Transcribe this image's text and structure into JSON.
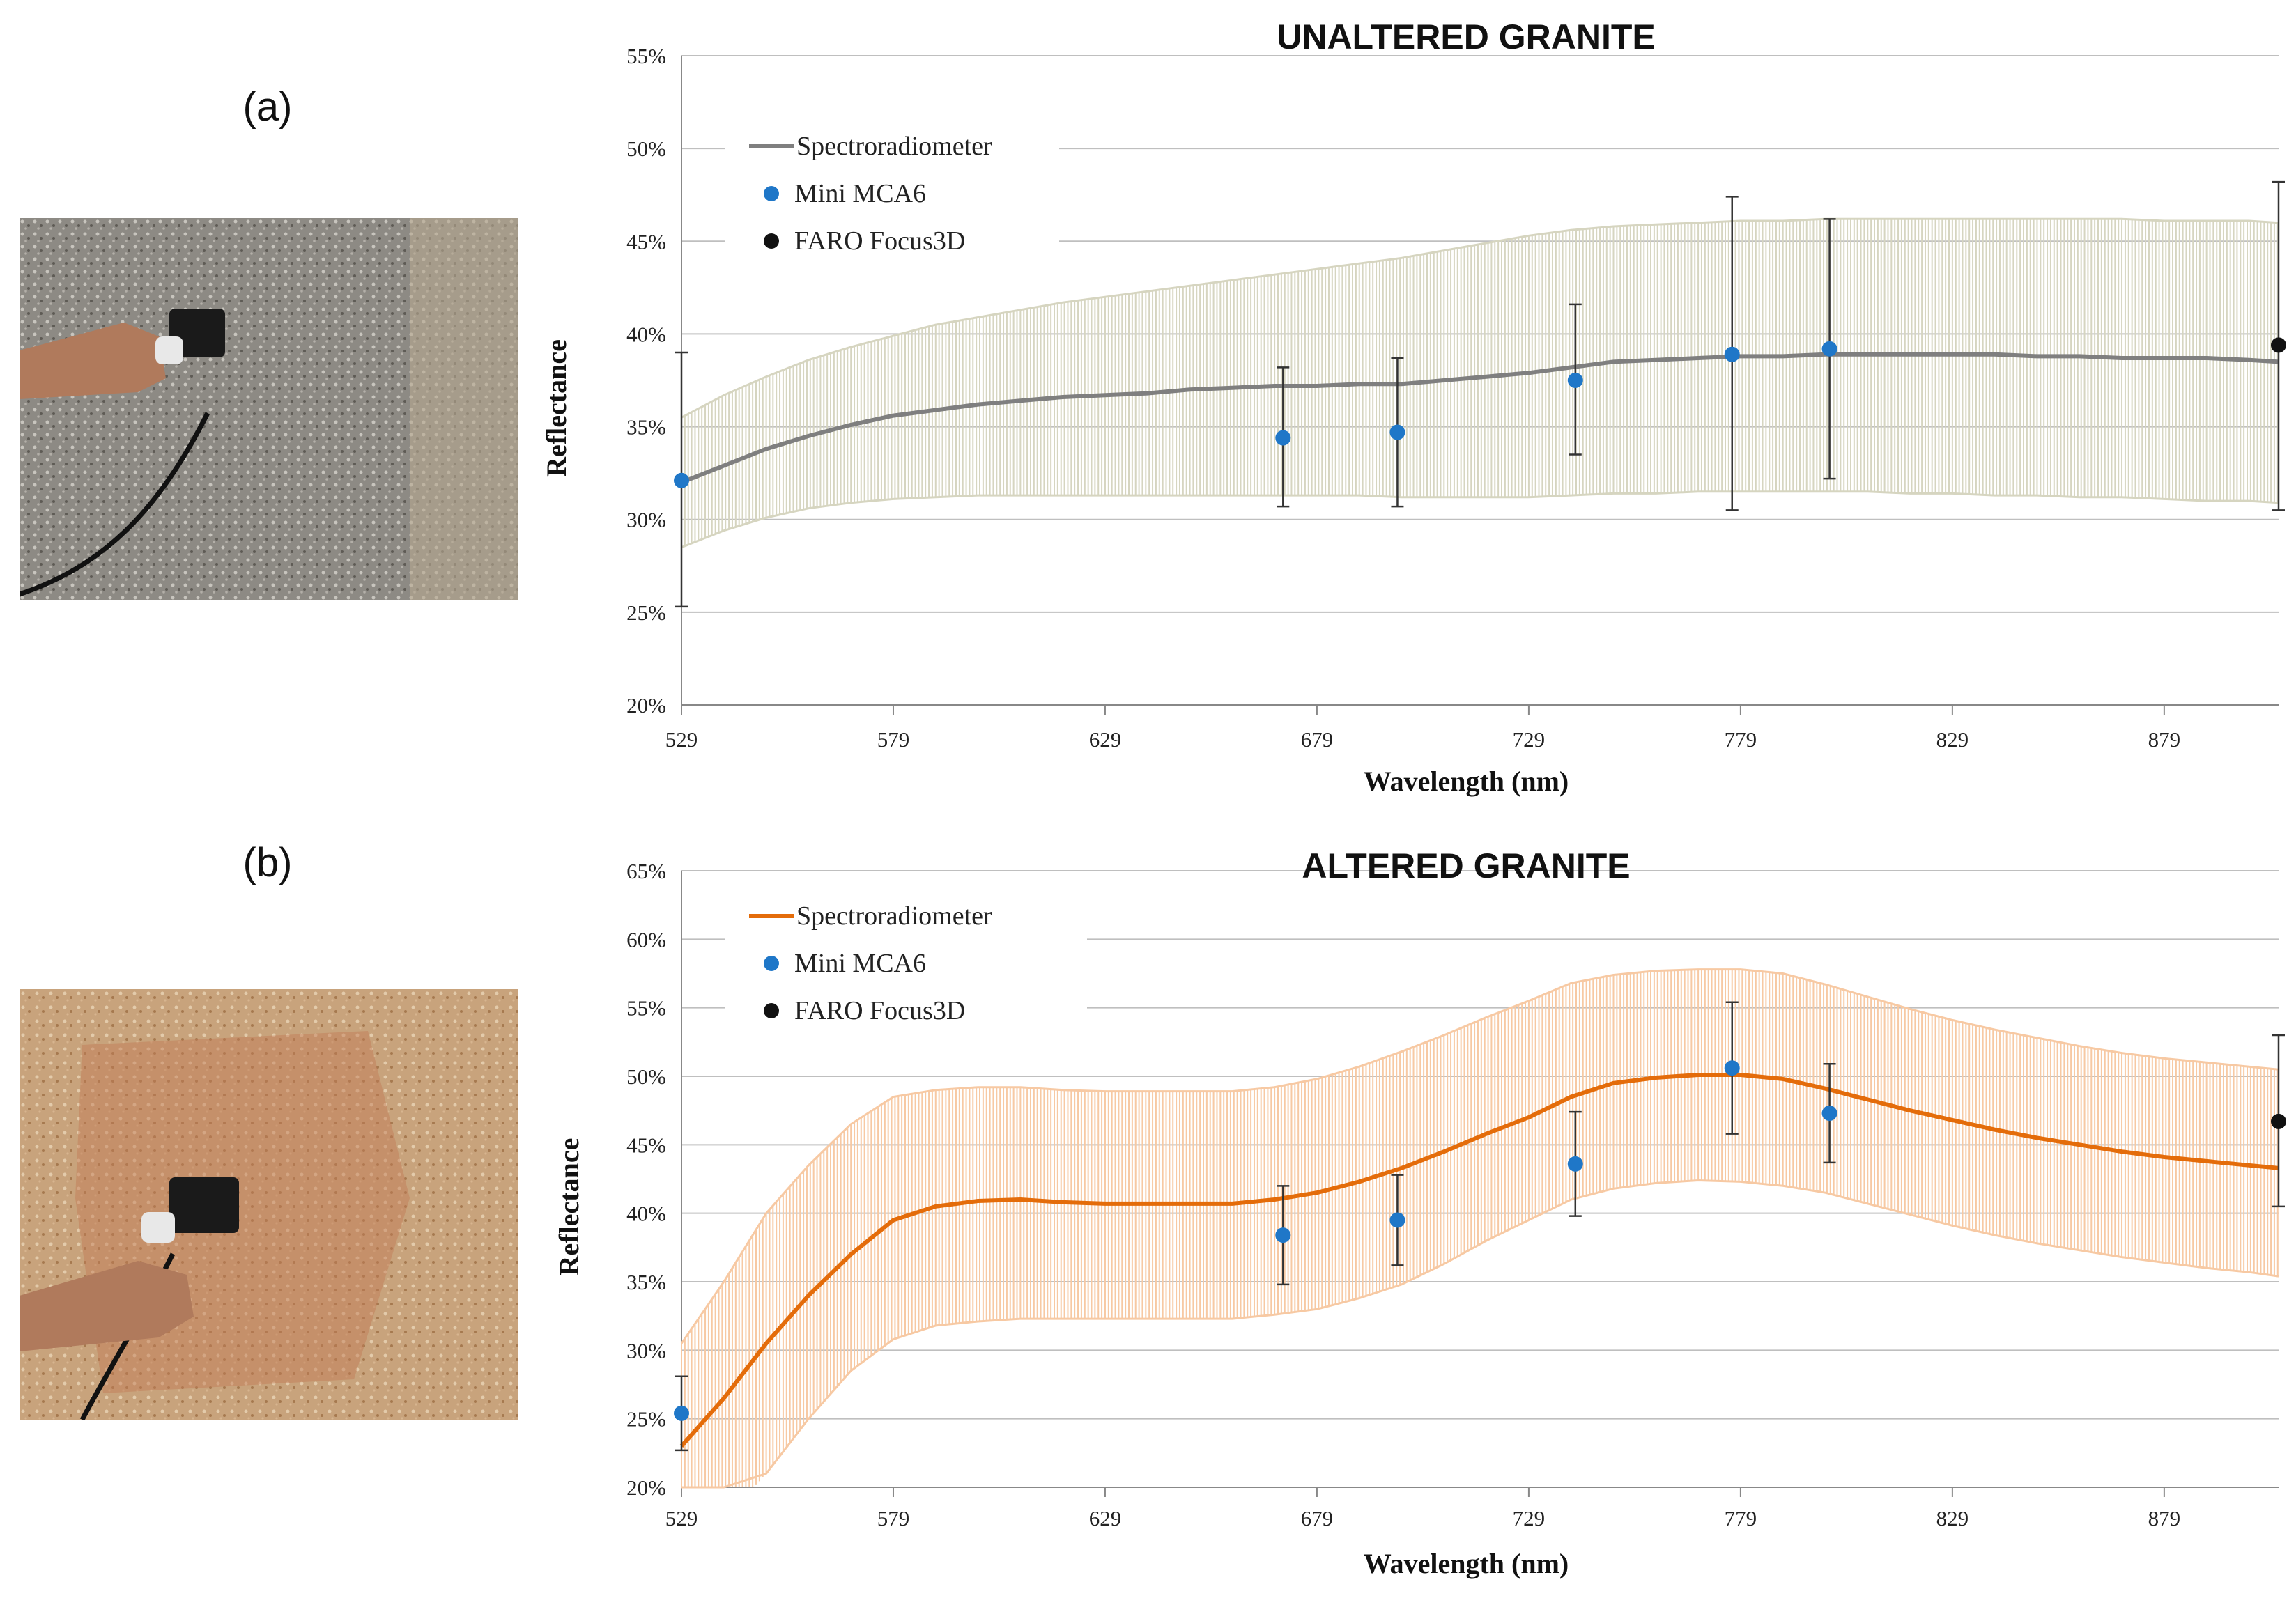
{
  "panels": [
    {
      "label": "(a)"
    },
    {
      "label": "(b)"
    }
  ],
  "photos": [
    {
      "description_icon": "stone-photo-icon",
      "stone_color": "#8f8a80",
      "speckle_color": "#c9c6bf",
      "arm_color": "#b37a5a"
    },
    {
      "description_icon": "stone-photo-icon",
      "stone_color": "#c9a47a",
      "speckle_color": "#e6cfae",
      "arm_color": "#b37a5a"
    }
  ],
  "colors": {
    "unaltered_line": "#7f7f7f",
    "unaltered_band": "#d6d5c0",
    "altered_line": "#e46c0a",
    "altered_band": "#f7c9a3",
    "mca6_marker": "#1f77c8",
    "faro_marker": "#111111",
    "grid": "#bfbfbf",
    "errorbar": "#333333"
  },
  "chart_data": [
    {
      "type": "line",
      "title": "UNALTERED GRANITE",
      "xlabel": "Wavelength (nm)",
      "ylabel": "Reflectance",
      "xlim": [
        529,
        906
      ],
      "ylim": [
        20,
        55
      ],
      "x_ticks": [
        529,
        579,
        629,
        679,
        729,
        779,
        829,
        879
      ],
      "y_ticks": [
        20,
        25,
        30,
        35,
        40,
        45,
        50,
        55
      ],
      "y_tick_labels": [
        "20%",
        "25%",
        "30%",
        "35%",
        "40%",
        "45%",
        "50%",
        "55%"
      ],
      "grid": true,
      "legend_position": "top-left",
      "series": [
        {
          "name": "Spectroradiometer",
          "kind": "line",
          "x": [
            529,
            539,
            549,
            559,
            569,
            579,
            589,
            599,
            609,
            619,
            629,
            639,
            649,
            659,
            669,
            679,
            689,
            699,
            709,
            719,
            729,
            739,
            749,
            759,
            769,
            779,
            789,
            799,
            809,
            819,
            829,
            839,
            849,
            859,
            869,
            879,
            889,
            899,
            906
          ],
          "y": [
            32.0,
            32.9,
            33.8,
            34.5,
            35.1,
            35.6,
            35.9,
            36.2,
            36.4,
            36.6,
            36.7,
            36.8,
            37.0,
            37.1,
            37.2,
            37.2,
            37.3,
            37.3,
            37.5,
            37.7,
            37.9,
            38.2,
            38.5,
            38.6,
            38.7,
            38.8,
            38.8,
            38.9,
            38.9,
            38.9,
            38.9,
            38.9,
            38.8,
            38.8,
            38.7,
            38.7,
            38.7,
            38.6,
            38.5
          ],
          "band_low": [
            28.5,
            29.4,
            30.1,
            30.6,
            30.9,
            31.1,
            31.2,
            31.3,
            31.3,
            31.3,
            31.3,
            31.3,
            31.3,
            31.3,
            31.3,
            31.3,
            31.3,
            31.2,
            31.2,
            31.2,
            31.2,
            31.3,
            31.4,
            31.4,
            31.5,
            31.5,
            31.5,
            31.5,
            31.5,
            31.4,
            31.4,
            31.3,
            31.3,
            31.2,
            31.2,
            31.1,
            31.0,
            31.0,
            30.9
          ],
          "band_high": [
            35.5,
            36.7,
            37.7,
            38.6,
            39.3,
            39.9,
            40.5,
            40.9,
            41.3,
            41.7,
            42.0,
            42.3,
            42.6,
            42.9,
            43.2,
            43.5,
            43.8,
            44.1,
            44.5,
            44.9,
            45.3,
            45.6,
            45.8,
            45.9,
            46.0,
            46.1,
            46.1,
            46.2,
            46.2,
            46.2,
            46.2,
            46.2,
            46.2,
            46.2,
            46.2,
            46.1,
            46.1,
            46.1,
            46.0
          ]
        },
        {
          "name": "Mini MCA6",
          "kind": "points",
          "x": [
            529,
            671,
            698,
            740,
            777,
            800
          ],
          "y": [
            32.1,
            34.4,
            34.7,
            37.5,
            38.9,
            39.2
          ],
          "err_low": [
            25.3,
            30.7,
            30.7,
            33.5,
            30.5,
            32.2
          ],
          "err_high": [
            39.0,
            38.2,
            38.7,
            41.6,
            47.4,
            46.2
          ]
        },
        {
          "name": "FARO Focus3D",
          "kind": "points",
          "x": [
            906
          ],
          "y": [
            39.4
          ],
          "err_low": [
            30.5
          ],
          "err_high": [
            48.2
          ]
        }
      ]
    },
    {
      "type": "line",
      "title": "ALTERED GRANITE",
      "xlabel": "Wavelength (nm)",
      "ylabel": "Reflectance",
      "xlim": [
        529,
        906
      ],
      "ylim": [
        20,
        65
      ],
      "x_ticks": [
        529,
        579,
        629,
        679,
        729,
        779,
        829,
        879
      ],
      "y_ticks": [
        20,
        25,
        30,
        35,
        40,
        45,
        50,
        55,
        60,
        65
      ],
      "y_tick_labels": [
        "20%",
        "25%",
        "30%",
        "35%",
        "40%",
        "45%",
        "50%",
        "55%",
        "60%",
        "65%"
      ],
      "grid": true,
      "legend_position": "top-left",
      "series": [
        {
          "name": "Spectroradiometer",
          "kind": "line",
          "x": [
            529,
            539,
            549,
            559,
            569,
            579,
            589,
            599,
            609,
            619,
            629,
            639,
            649,
            659,
            669,
            679,
            689,
            699,
            709,
            719,
            729,
            739,
            749,
            759,
            769,
            779,
            789,
            799,
            809,
            819,
            829,
            839,
            849,
            859,
            869,
            879,
            889,
            899,
            906
          ],
          "y": [
            23.0,
            26.5,
            30.5,
            34.0,
            37.0,
            39.5,
            40.5,
            40.9,
            41.0,
            40.8,
            40.7,
            40.7,
            40.7,
            40.7,
            41.0,
            41.5,
            42.3,
            43.3,
            44.5,
            45.8,
            47.0,
            48.5,
            49.5,
            49.9,
            50.1,
            50.1,
            49.8,
            49.1,
            48.3,
            47.5,
            46.8,
            46.1,
            45.5,
            45.0,
            44.5,
            44.1,
            43.8,
            43.5,
            43.3
          ],
          "band_low": [
            15.5,
            17.5,
            21.0,
            25.0,
            28.5,
            30.8,
            31.8,
            32.1,
            32.3,
            32.3,
            32.3,
            32.3,
            32.3,
            32.3,
            32.6,
            33.0,
            33.8,
            34.8,
            36.3,
            38.0,
            39.5,
            41.0,
            41.8,
            42.2,
            42.4,
            42.3,
            42.0,
            41.5,
            40.7,
            39.9,
            39.1,
            38.4,
            37.8,
            37.3,
            36.8,
            36.4,
            36.0,
            35.7,
            35.4
          ],
          "band_high": [
            30.5,
            35.0,
            40.0,
            43.5,
            46.5,
            48.5,
            49.0,
            49.2,
            49.2,
            49.0,
            48.9,
            48.9,
            48.9,
            48.9,
            49.2,
            49.8,
            50.7,
            51.8,
            53.0,
            54.3,
            55.5,
            56.8,
            57.4,
            57.7,
            57.8,
            57.8,
            57.5,
            56.7,
            55.8,
            54.9,
            54.1,
            53.4,
            52.8,
            52.2,
            51.7,
            51.3,
            51.0,
            50.7,
            50.5
          ]
        },
        {
          "name": "Mini MCA6",
          "kind": "points",
          "x": [
            529,
            671,
            698,
            740,
            777,
            800
          ],
          "y": [
            25.4,
            38.4,
            39.5,
            43.6,
            50.6,
            47.3
          ],
          "err_low": [
            22.7,
            34.8,
            36.2,
            39.8,
            45.8,
            43.7
          ],
          "err_high": [
            28.1,
            42.0,
            42.8,
            47.4,
            55.4,
            50.9
          ]
        },
        {
          "name": "FARO Focus3D",
          "kind": "points",
          "x": [
            906
          ],
          "y": [
            46.7
          ],
          "err_low": [
            40.5
          ],
          "err_high": [
            53.0
          ]
        }
      ]
    }
  ]
}
